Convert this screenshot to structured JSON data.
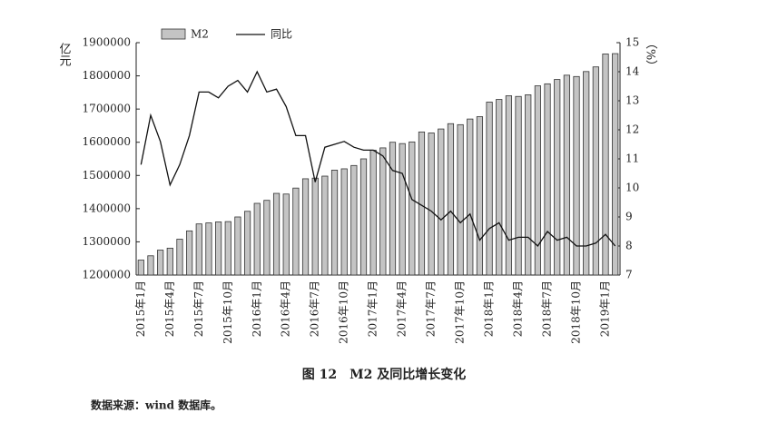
{
  "chart_data": {
    "type": "bar",
    "title": "图 12　M2 及同比增长变化",
    "source": "数据来源：wind 数据库。",
    "y_label": "亿元",
    "y2_label": "（%）",
    "categories": [
      "2015年1月",
      null,
      null,
      "2015年4月",
      null,
      null,
      "2015年7月",
      null,
      null,
      "2015年10月",
      null,
      null,
      "2016年1月",
      null,
      null,
      "2016年4月",
      null,
      null,
      "2016年7月",
      null,
      null,
      "2016年10月",
      null,
      null,
      "2017年1月",
      null,
      null,
      "2017年4月",
      null,
      null,
      "2017年7月",
      null,
      null,
      "2017年10月",
      null,
      null,
      "2018年1月",
      null,
      null,
      "2018年4月",
      null,
      null,
      "2018年7月",
      null,
      null,
      "2018年10月",
      null,
      null,
      "2019年1月",
      null
    ],
    "series": [
      {
        "name": "M2",
        "type": "bar",
        "color": "#c4c4c4",
        "values": [
          1245000,
          1258000,
          1275000,
          1281000,
          1308000,
          1333000,
          1354000,
          1357000,
          1360000,
          1361000,
          1375000,
          1392000,
          1416000,
          1425000,
          1446000,
          1444000,
          1462000,
          1490000,
          1492000,
          1498000,
          1516000,
          1520000,
          1530000,
          1550000,
          1576000,
          1583000,
          1600000,
          1596000,
          1601000,
          1631000,
          1628000,
          1640000,
          1656000,
          1653000,
          1670000,
          1677000,
          1721000,
          1729000,
          1740000,
          1738000,
          1743000,
          1770000,
          1776000,
          1789000,
          1802000,
          1798000,
          1813000,
          1827000,
          1866000,
          1867000
        ]
      },
      {
        "name": "同比",
        "type": "line",
        "axis": "y2",
        "color": "#111111",
        "values": [
          10.8,
          12.5,
          11.6,
          10.1,
          10.8,
          11.8,
          13.3,
          13.3,
          13.1,
          13.5,
          13.7,
          13.3,
          14.0,
          13.3,
          13.4,
          12.8,
          11.8,
          11.8,
          10.2,
          11.4,
          11.5,
          11.6,
          11.4,
          11.3,
          11.3,
          11.1,
          10.6,
          10.5,
          9.6,
          9.4,
          9.2,
          8.9,
          9.2,
          8.8,
          9.1,
          8.2,
          8.6,
          8.8,
          8.2,
          8.3,
          8.3,
          8.0,
          8.5,
          8.2,
          8.3,
          8.0,
          8.0,
          8.1,
          8.4,
          8.0
        ]
      }
    ],
    "ylim": [
      1200000,
      1900000
    ],
    "yticks": [
      1200000,
      1300000,
      1400000,
      1500000,
      1600000,
      1700000,
      1800000,
      1900000
    ],
    "y2lim": [
      7,
      15
    ],
    "y2ticks": [
      7,
      8,
      9,
      10,
      11,
      12,
      13,
      14,
      15
    ]
  }
}
